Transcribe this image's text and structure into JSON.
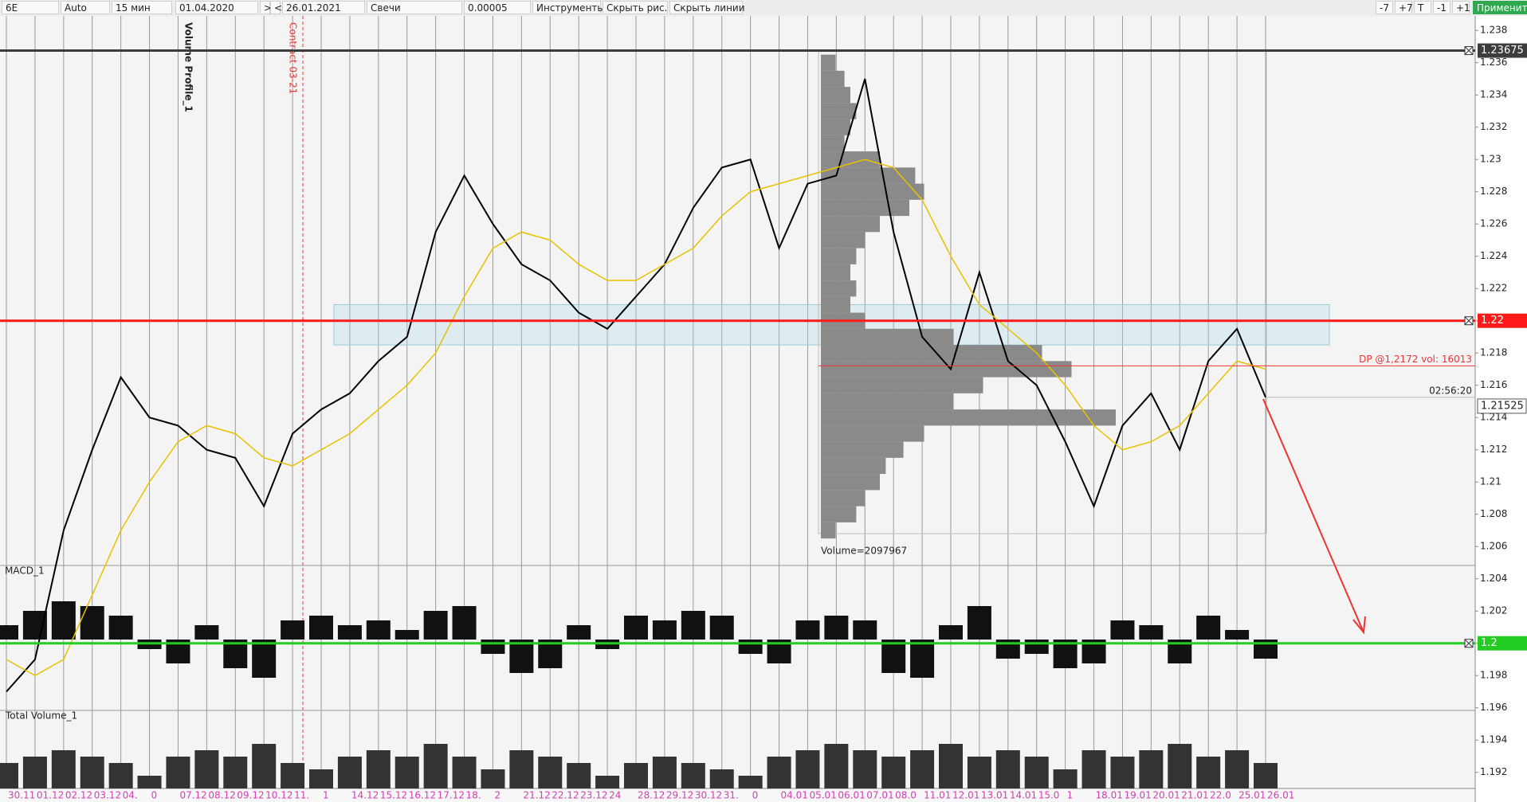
{
  "toolbar": {
    "symbol": "6E",
    "mode": "Auto",
    "timeframe": "15 мин",
    "date_from": "01.04.2020",
    "nav_next": ">",
    "nav_prev": "<",
    "date_to": "26.01.2021",
    "chart_type": "Свечи",
    "tick_size": "0.00005",
    "tools": "Инструменты",
    "hide_drawings": "Скрыть рис.",
    "hide_lines": "Скрыть линии",
    "buttons": [
      "-7",
      "+7",
      "T",
      "-1",
      "+1"
    ],
    "apply": "Применить"
  },
  "chart_data": {
    "type": "line",
    "categories": [
      "30.11",
      "01.12",
      "02.12",
      "03.12",
      "04.",
      "0",
      "07.12",
      "08.12",
      "09.12",
      "10.12",
      "11.",
      "1",
      "14.12",
      "15.12",
      "16.12",
      "17.12",
      "18.",
      "2",
      "21.12",
      "22.12",
      "23.12",
      "24",
      "28.12",
      "29.12",
      "30.12",
      "31.",
      "0",
      "04.01",
      "05.01",
      "06.01",
      "07.01",
      "08.0",
      "11.01",
      "12.01",
      "13.01",
      "14.01",
      "15.0",
      "1",
      "18.01",
      "19.01",
      "20.01",
      "21.01",
      "22.0",
      "25.01",
      "26.01"
    ],
    "series": [
      {
        "color": "#000000",
        "values": [
          1.197,
          1.199,
          1.207,
          1.212,
          1.2165,
          1.214,
          1.2135,
          1.212,
          1.2115,
          1.2085,
          1.213,
          1.2145,
          1.2155,
          1.2175,
          1.219,
          1.2255,
          1.229,
          1.226,
          1.2235,
          1.2225,
          1.2205,
          1.2195,
          1.2215,
          1.2235,
          1.227,
          1.2295,
          1.23,
          1.2245,
          1.2285,
          1.229,
          1.235,
          1.2255,
          1.219,
          1.217,
          1.223,
          1.2175,
          1.216,
          1.2125,
          1.2085,
          1.2135,
          1.2155,
          1.212,
          1.2175,
          1.2195,
          1.21525
        ]
      },
      {
        "color": "#e6c200",
        "values": [
          1.199,
          1.198,
          1.199,
          1.203,
          1.207,
          1.21,
          1.2125,
          1.2135,
          1.213,
          1.2115,
          1.211,
          1.212,
          1.213,
          1.2145,
          1.216,
          1.218,
          1.2215,
          1.2245,
          1.2255,
          1.225,
          1.2235,
          1.2225,
          1.2225,
          1.2235,
          1.2245,
          1.2265,
          1.228,
          1.2285,
          1.229,
          1.2295,
          1.23,
          1.2295,
          1.2275,
          1.224,
          1.221,
          1.2195,
          1.218,
          1.216,
          1.2135,
          1.212,
          1.2125,
          1.2135,
          1.2155,
          1.2175,
          1.217
        ]
      }
    ],
    "ylim": [
      1.191,
      1.2389
    ],
    "yticks": [
      1.192,
      1.194,
      1.196,
      1.198,
      1.2,
      1.202,
      1.204,
      1.206,
      1.208,
      1.21,
      1.212,
      1.214,
      1.216,
      1.218,
      1.22,
      1.222,
      1.224,
      1.226,
      1.228,
      1.23,
      1.232,
      1.234,
      1.236,
      1.238
    ],
    "levels": [
      {
        "value": 1.23675,
        "color": "#3c3c3c"
      },
      {
        "value": 1.22,
        "color": "#ff1a1a"
      },
      {
        "value": 1.2,
        "color": "#22cc22"
      }
    ],
    "current": {
      "value": 1.21525,
      "time": "02:56:20"
    },
    "zone": [
      1.2185,
      1.221
    ],
    "dp": {
      "value": 1.2172,
      "label": "DP @1,2172 vol: 16013"
    },
    "profile": {
      "label": "Volume Profile_1",
      "total": "Volume=2097967",
      "box": [
        1.2068,
        1.2367
      ],
      "prices": [
        1.207,
        1.208,
        1.209,
        1.21,
        1.211,
        1.212,
        1.213,
        1.214,
        1.215,
        1.216,
        1.217,
        1.218,
        1.219,
        1.22,
        1.221,
        1.222,
        1.223,
        1.224,
        1.225,
        1.226,
        1.227,
        1.228,
        1.229,
        1.23,
        1.231,
        1.232,
        1.233,
        1.234,
        1.235,
        1.236
      ],
      "volumes": [
        0.05,
        0.12,
        0.15,
        0.2,
        0.22,
        0.28,
        0.35,
        1,
        0.45,
        0.55,
        0.85,
        0.75,
        0.45,
        0.15,
        0.1,
        0.12,
        0.1,
        0.12,
        0.15,
        0.2,
        0.3,
        0.35,
        0.32,
        0.2,
        0.08,
        0.1,
        0.12,
        0.1,
        0.08,
        0.05
      ]
    },
    "contract": "Contract 03-21",
    "macd": {
      "label": "MACD_1",
      "values": [
        0.3,
        0.6,
        0.8,
        0.7,
        0.5,
        -0.2,
        -0.5,
        0.3,
        -0.6,
        -0.8,
        0.4,
        0.5,
        0.3,
        0.4,
        0.2,
        0.6,
        0.7,
        -0.3,
        -0.7,
        -0.6,
        0.3,
        -0.2,
        0.5,
        0.4,
        0.6,
        0.5,
        -0.3,
        -0.5,
        0.4,
        0.5,
        0.4,
        -0.7,
        -0.8,
        0.3,
        0.7,
        -0.4,
        -0.3,
        -0.6,
        -0.5,
        0.4,
        0.3,
        -0.5,
        0.5,
        0.2,
        -0.4
      ]
    },
    "total_volume": {
      "label": "Total Volume_1",
      "values": [
        0.4,
        0.5,
        0.6,
        0.5,
        0.4,
        0.2,
        0.5,
        0.6,
        0.5,
        0.7,
        0.4,
        0.3,
        0.5,
        0.6,
        0.5,
        0.7,
        0.5,
        0.3,
        0.6,
        0.5,
        0.4,
        0.2,
        0.4,
        0.5,
        0.4,
        0.3,
        0.2,
        0.5,
        0.6,
        0.7,
        0.6,
        0.5,
        0.6,
        0.7,
        0.5,
        0.6,
        0.5,
        0.3,
        0.6,
        0.5,
        0.6,
        0.7,
        0.5,
        0.6,
        0.4
      ]
    }
  }
}
